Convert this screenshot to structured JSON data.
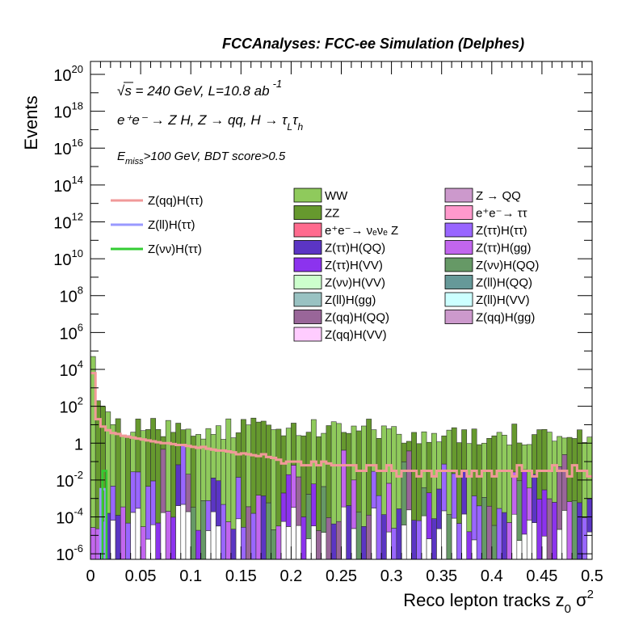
{
  "header": {
    "title": "FCCAnalyses: FCC-ee Simulation (Delphes)"
  },
  "annotations": {
    "line1": "√s = 240 GeV, L=10.8 ab",
    "line1_sup": "-1",
    "line2": "e⁺e⁻ → Z H, Z → qq, H → τ",
    "line2_sub1": "L",
    "line2_tau2": "τ",
    "line2_sub2": "h",
    "line3_E": "E",
    "line3_sub": "miss",
    "line3_rest": ">100 GeV, BDT score>0.5"
  },
  "chart_data": {
    "type": "histogram",
    "xlabel": "Reco lepton tracks z",
    "xlabel_sub": "0",
    "xlabel_tail": " σ",
    "xlabel_sup": "2",
    "ylabel": "Events",
    "xlim": [
      0,
      0.5
    ],
    "ylim_log10": [
      -6.3,
      20.7
    ],
    "log_y": true,
    "x_ticks": [
      "0",
      "0.05",
      "0.1",
      "0.15",
      "0.2",
      "0.25",
      "0.3",
      "0.35",
      "0.4",
      "0.45",
      "0.5"
    ],
    "y_ticks": [
      {
        "base": "10",
        "exp": "20"
      },
      {
        "base": "10",
        "exp": "18"
      },
      {
        "base": "10",
        "exp": "16"
      },
      {
        "base": "10",
        "exp": "14"
      },
      {
        "base": "10",
        "exp": "12"
      },
      {
        "base": "10",
        "exp": "10"
      },
      {
        "base": "10",
        "exp": "8"
      },
      {
        "base": "10",
        "exp": "6"
      },
      {
        "base": "10",
        "exp": "4"
      },
      {
        "base": "10",
        "exp": "2"
      },
      {
        "base": "1",
        "exp": ""
      },
      {
        "base": "10",
        "exp": "-2"
      },
      {
        "base": "10",
        "exp": "-4"
      },
      {
        "base": "10",
        "exp": "-6"
      }
    ],
    "signal_legend": [
      {
        "label": "Z(qq)H(ττ)",
        "color": "#f19999"
      },
      {
        "label": "Z(ll)H(ττ)",
        "color": "#9999ff"
      },
      {
        "label": "Z(νν)H(ττ)",
        "color": "#33cc33"
      }
    ],
    "background_legend_col1": [
      {
        "label": "WW",
        "color": "#8fca5c"
      },
      {
        "label": "ZZ",
        "color": "#66992e"
      },
      {
        "label": "e⁺e⁻→ νₑνₑ Z",
        "color": "#ff6b8e"
      },
      {
        "label": "Z(ττ)H(QQ)",
        "color": "#5b35c4"
      },
      {
        "label": "Z(ττ)H(VV)",
        "color": "#8c33ee"
      },
      {
        "label": "Z(νν)H(VV)",
        "color": "#ccffcc"
      },
      {
        "label": "Z(ll)H(gg)",
        "color": "#99c2c2"
      },
      {
        "label": "Z(qq)H(QQ)",
        "color": "#996699"
      },
      {
        "label": "Z(qq)H(VV)",
        "color": "#ffccff"
      }
    ],
    "background_legend_col2": [
      {
        "label": "Z → QQ",
        "color": "#cc99cc"
      },
      {
        "label": "e⁺e⁻→ ττ",
        "color": "#ff99cc"
      },
      {
        "label": "Z(ττ)H(ττ)",
        "color": "#9966ff"
      },
      {
        "label": "Z(ττ)H(gg)",
        "color": "#c266ee"
      },
      {
        "label": "Z(νν)H(QQ)",
        "color": "#669966"
      },
      {
        "label": "Z(ll)H(QQ)",
        "color": "#669999"
      },
      {
        "label": "Z(ll)H(VV)",
        "color": "#ccffff"
      },
      {
        "label": "Z(qq)H(gg)",
        "color": "#cc99cc"
      }
    ],
    "signal_zqq_htt": {
      "x_start": 0.0,
      "bin_width": 0.005,
      "log10_values": [
        3.8,
        1.3,
        0.9,
        0.7,
        0.55,
        0.5,
        0.4,
        0.35,
        0.3,
        0.25,
        0.2,
        0.15,
        0.1,
        0.05,
        0.0,
        0.0,
        -0.05,
        -0.1,
        -0.1,
        -0.15,
        -0.2,
        -0.25,
        -0.2,
        -0.3,
        -0.35,
        -0.4,
        -0.4,
        -0.45,
        -0.5,
        -0.6,
        -0.55,
        -0.6,
        -0.65,
        -0.7,
        -0.6,
        -0.75,
        -0.8,
        -0.9,
        -1.1,
        -1.0,
        -1.0,
        -1.0,
        -1.2,
        -1.2,
        -1.0,
        -1.2,
        -1.0,
        -1.1,
        -1.2,
        -1.2,
        -1.2,
        -1.2,
        -1.2,
        -1.5,
        -1.5,
        -1.2,
        -1.2,
        -1.5,
        -1.5,
        -1.2,
        -1.5,
        -1.8,
        -1.5,
        -1.5,
        -1.5,
        -1.8,
        -1.5,
        -1.5,
        -1.8,
        -1.5,
        -1.5,
        -1.5,
        -1.5,
        -1.8,
        -1.5,
        -1.8,
        -1.5,
        -1.8,
        -1.5,
        -1.5,
        -1.8,
        -1.5,
        -1.5,
        -1.5,
        -1.8,
        -1.2,
        -1.5,
        -1.5,
        -1.8,
        -1.5,
        -1.5,
        -1.5,
        -1.2,
        -1.5,
        -1.5,
        -1.8,
        -1.2,
        -1.5,
        -1.5,
        -1.8
      ]
    }
  }
}
